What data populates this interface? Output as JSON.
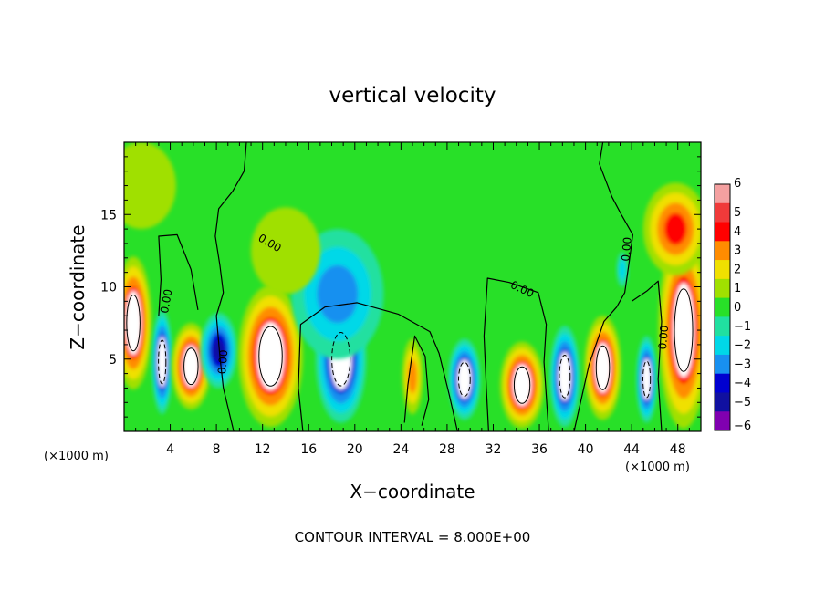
{
  "chart_data": {
    "type": "heatmap",
    "title": "vertical velocity",
    "xlabel": "X−coordinate",
    "ylabel": "Z−coordinate",
    "x_unit": "(×1000 m)",
    "y_unit": "(×1000 m)",
    "footer": "CONTOUR INTERVAL = 8.000E+00",
    "contour_label": "0.00",
    "xlim": [
      0,
      50
    ],
    "ylim": [
      0,
      20
    ],
    "x_ticks": [
      4,
      8,
      12,
      16,
      20,
      24,
      28,
      32,
      36,
      40,
      44,
      48
    ],
    "x_tick_labels": [
      "4",
      "8",
      "12",
      "16",
      "20",
      "24",
      "28",
      "32",
      "36",
      "40",
      "44",
      "48"
    ],
    "y_ticks": [
      5,
      10,
      15
    ],
    "y_tick_labels": [
      "5",
      "10",
      "15"
    ],
    "colorbar": {
      "values": [
        6,
        5,
        4,
        3,
        2,
        1,
        0,
        -1,
        -2,
        -3,
        -4,
        -5,
        -6
      ],
      "labels": [
        "6",
        "5",
        "4",
        "3",
        "2",
        "1",
        "0",
        "−1",
        "−2",
        "−3",
        "−4",
        "−5",
        "−6"
      ],
      "colors": [
        "#f4a0a0",
        "#f03a3a",
        "#ff0000",
        "#ff8c00",
        "#f0e000",
        "#a0e000",
        "#28e028",
        "#20e0a0",
        "#00d8e8",
        "#1890f0",
        "#0000d0",
        "#1010a0",
        "#8000b0"
      ]
    },
    "features": [
      {
        "name": "updraft",
        "x": 0.8,
        "z": 7.5,
        "rx": 1.6,
        "rz": 4.6,
        "w": 7
      },
      {
        "name": "downdraft",
        "x": 3.3,
        "z": 4.8,
        "rx": 0.9,
        "rz": 3.6,
        "w": -7
      },
      {
        "name": "updraft",
        "x": 5.8,
        "z": 4.5,
        "rx": 1.7,
        "rz": 3.0,
        "w": 7
      },
      {
        "name": "downdraft",
        "x": 8.2,
        "z": 5.6,
        "rx": 1.6,
        "rz": 2.6,
        "w": -5
      },
      {
        "name": "updraft",
        "x": 12.7,
        "z": 5.2,
        "rx": 2.8,
        "rz": 4.9,
        "w": 8
      },
      {
        "name": "downdraft",
        "x": 18.8,
        "z": 5.0,
        "rx": 2.2,
        "rz": 4.4,
        "w": -8
      },
      {
        "name": "downdraft",
        "x": 18.5,
        "z": 9.5,
        "rx": 4.0,
        "rz": 4.5,
        "w": -3
      },
      {
        "name": "updraft",
        "x": 25.0,
        "z": 3.8,
        "rx": 0.9,
        "rz": 2.6,
        "w": 3
      },
      {
        "name": "downdraft",
        "x": 29.5,
        "z": 3.6,
        "rx": 1.4,
        "rz": 2.8,
        "w": -7
      },
      {
        "name": "updraft",
        "x": 34.5,
        "z": 3.2,
        "rx": 1.9,
        "rz": 3.0,
        "w": 8
      },
      {
        "name": "downdraft",
        "x": 38.2,
        "z": 3.8,
        "rx": 1.3,
        "rz": 3.5,
        "w": -7
      },
      {
        "name": "updraft",
        "x": 41.5,
        "z": 4.4,
        "rx": 1.6,
        "rz": 3.6,
        "w": 8
      },
      {
        "name": "downdraft",
        "x": 45.3,
        "z": 3.6,
        "rx": 0.9,
        "rz": 3.0,
        "w": -7
      },
      {
        "name": "updraft",
        "x": 48.5,
        "z": 7.0,
        "rx": 2.2,
        "rz": 6.8,
        "w": 8
      },
      {
        "name": "updraft",
        "x": 47.8,
        "z": 14.0,
        "rx": 2.8,
        "rz": 3.2,
        "w": 4
      },
      {
        "name": "updraft",
        "x": 1.5,
        "z": 17.0,
        "rx": 3.0,
        "rz": 3.0,
        "w": 1
      },
      {
        "name": "updraft",
        "x": 14.0,
        "z": 12.5,
        "rx": 3.0,
        "rz": 3.0,
        "w": 1
      },
      {
        "name": "downdraft",
        "x": 43.2,
        "z": 11.2,
        "rx": 0.5,
        "rz": 1.2,
        "w": -2
      }
    ]
  }
}
